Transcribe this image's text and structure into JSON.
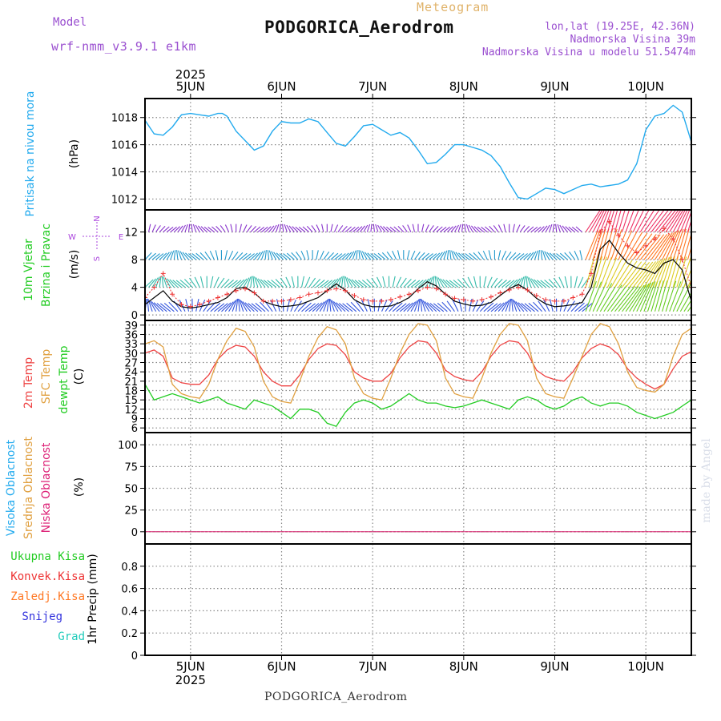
{
  "header": {
    "model_label": "Model",
    "model_name": "wrf-nmm_v3.9.1  e1km",
    "meteogram": "Meteogram",
    "station": "PODGORICA_Aerodrom",
    "lonlat": "lon,lat (19.25E, 42.36N)",
    "altitude": "Nadmorska Visina 39m",
    "model_altitude": "Nadmorska Visina u modelu 51.5474m"
  },
  "footer": {
    "station": "PODGORICA_Aerodrom"
  },
  "watermark": "made by Angel",
  "colors": {
    "pressure": "#22aaee",
    "wind_speed": "#000000",
    "gust": "#ee3333",
    "t2m": "#ee4444",
    "sfc": "#e0a040",
    "dewpt": "#22cc22",
    "visoka": "#22aaee",
    "srednja": "#e0a040",
    "niska": "#dd2277",
    "ukupna": "#22cc22",
    "konvek": "#ee3333",
    "zaledj": "#ff7722",
    "snijeg": "#3333dd",
    "grad": "#22ccbb"
  },
  "chart_data": [
    {
      "type": "line",
      "panel": "pressure",
      "x_labels": [
        "5JUN",
        "6JUN",
        "7JUN",
        "8JUN",
        "9JUN",
        "10JUN"
      ],
      "year": "2025",
      "x_range": [
        4.5,
        10.5
      ],
      "ylim": [
        1011.2,
        1019.4
      ],
      "yticks": [
        "1012",
        "1014",
        "1016",
        "1018"
      ],
      "ylabel_left": "Pritisak na nivou mora",
      "unit": "(hPa)",
      "grid": true,
      "series": [
        {
          "x": [
            4.5,
            4.6,
            4.7,
            4.8,
            4.9,
            5.0,
            5.1,
            5.2,
            5.3,
            5.35,
            5.4,
            5.5,
            5.6,
            5.7,
            5.8,
            5.9,
            6.0,
            6.1,
            6.2,
            6.3,
            6.4,
            6.5,
            6.6,
            6.7,
            6.8,
            6.9,
            7.0,
            7.1,
            7.2,
            7.3,
            7.4,
            7.5,
            7.6,
            7.7,
            7.8,
            7.9,
            8.0,
            8.1,
            8.2,
            8.3,
            8.4,
            8.5,
            8.6,
            8.7,
            8.8,
            8.9,
            9.0,
            9.1,
            9.2,
            9.3,
            9.4,
            9.5,
            9.6,
            9.7,
            9.8,
            9.9,
            10.0,
            10.1,
            10.2,
            10.3,
            10.4,
            10.5
          ],
          "y": [
            1017.8,
            1016.8,
            1016.7,
            1017.3,
            1018.2,
            1018.3,
            1018.2,
            1018.1,
            1018.3,
            1018.3,
            1018.1,
            1017.0,
            1016.3,
            1015.6,
            1015.9,
            1017.0,
            1017.7,
            1017.6,
            1017.6,
            1017.9,
            1017.7,
            1016.9,
            1016.1,
            1015.9,
            1016.6,
            1017.4,
            1017.5,
            1017.1,
            1016.7,
            1016.9,
            1016.5,
            1015.6,
            1014.6,
            1014.7,
            1015.3,
            1016.0,
            1016.0,
            1015.8,
            1015.6,
            1015.2,
            1014.4,
            1013.2,
            1012.1,
            1012.0,
            1012.4,
            1012.8,
            1012.7,
            1012.4,
            1012.7,
            1013.0,
            1013.1,
            1012.9,
            1013.0,
            1013.1,
            1013.4,
            1014.6,
            1017.1,
            1018.1,
            1018.3,
            1018.9,
            1018.4,
            1016.2
          ]
        }
      ]
    },
    {
      "type": "line",
      "panel": "wind",
      "x_range": [
        4.5,
        10.5
      ],
      "ylim": [
        -0.8,
        15.2
      ],
      "yticks": [
        "0",
        "4",
        "8",
        "12"
      ],
      "ylabel_left": [
        "10m Vjetar",
        "Brzina i Pravac"
      ],
      "unit": "(m/s)",
      "direction_legend": [
        "N",
        "E",
        "S",
        "W"
      ],
      "grid": true,
      "series": [
        {
          "name": "wind_speed",
          "x": [
            4.5,
            4.6,
            4.7,
            4.8,
            4.9,
            5.0,
            5.1,
            5.2,
            5.3,
            5.4,
            5.5,
            5.6,
            5.7,
            5.8,
            5.9,
            6.0,
            6.1,
            6.2,
            6.3,
            6.4,
            6.5,
            6.6,
            6.7,
            6.8,
            6.9,
            7.0,
            7.1,
            7.2,
            7.3,
            7.4,
            7.5,
            7.6,
            7.7,
            7.8,
            7.9,
            8.0,
            8.1,
            8.2,
            8.3,
            8.4,
            8.5,
            8.6,
            8.7,
            8.8,
            8.9,
            9.0,
            9.1,
            9.2,
            9.3,
            9.4,
            9.5,
            9.6,
            9.7,
            9.8,
            9.9,
            10.0,
            10.1,
            10.2,
            10.3,
            10.4,
            10.5
          ],
          "y": [
            1.5,
            2.5,
            3.5,
            2.0,
            1.2,
            1.0,
            1.2,
            1.5,
            1.8,
            2.5,
            3.8,
            4.0,
            3.2,
            2.0,
            1.5,
            1.2,
            1.3,
            1.5,
            2.0,
            2.5,
            3.5,
            4.5,
            3.6,
            2.2,
            1.5,
            1.2,
            1.2,
            1.3,
            1.8,
            2.5,
            3.8,
            4.8,
            4.2,
            3.0,
            2.0,
            1.6,
            1.3,
            1.4,
            1.8,
            2.8,
            3.8,
            4.4,
            3.6,
            2.4,
            1.6,
            1.2,
            1.3,
            1.5,
            1.8,
            4.0,
            9.5,
            10.8,
            9.0,
            7.5,
            6.8,
            6.5,
            6.0,
            7.5,
            8.0,
            6.5,
            2.0
          ]
        },
        {
          "name": "gust",
          "x": [
            4.5,
            4.6,
            4.7,
            4.8,
            4.9,
            5.0,
            5.1,
            5.2,
            5.3,
            5.4,
            5.5,
            5.6,
            5.7,
            5.8,
            5.9,
            6.0,
            6.1,
            6.2,
            6.3,
            6.4,
            6.5,
            6.6,
            6.7,
            6.8,
            6.9,
            7.0,
            7.1,
            7.2,
            7.3,
            7.4,
            7.5,
            7.6,
            7.7,
            7.8,
            7.9,
            8.0,
            8.1,
            8.2,
            8.3,
            8.4,
            8.5,
            8.6,
            8.7,
            8.8,
            8.9,
            9.0,
            9.1,
            9.2,
            9.3,
            9.4,
            9.5,
            9.6,
            9.7,
            9.8,
            9.9,
            10.0,
            10.1,
            10.2,
            10.3,
            10.4,
            10.5
          ],
          "y": [
            2.5,
            4.0,
            6.0,
            3.0,
            1.5,
            1.2,
            1.5,
            2.0,
            2.5,
            3.0,
            3.5,
            3.8,
            3.2,
            2.0,
            2.0,
            2.0,
            2.2,
            2.5,
            3.0,
            3.2,
            3.5,
            3.8,
            3.5,
            2.8,
            2.2,
            2.0,
            2.0,
            2.2,
            2.6,
            3.0,
            3.5,
            4.0,
            3.8,
            3.0,
            2.4,
            2.2,
            2.0,
            2.2,
            2.6,
            3.2,
            3.6,
            4.0,
            3.6,
            2.8,
            2.2,
            2.0,
            2.0,
            2.5,
            3.0,
            6.0,
            12.0,
            13.5,
            11.5,
            10.0,
            9.0,
            10.0,
            11.0,
            12.5,
            11.0,
            8.0,
            4.0
          ]
        }
      ]
    },
    {
      "type": "line",
      "panel": "temperature",
      "x_range": [
        4.5,
        10.5
      ],
      "ylim": [
        4.5,
        40.5
      ],
      "yticks": [
        "6",
        "9",
        "12",
        "15",
        "18",
        "21",
        "24",
        "27",
        "30",
        "33",
        "36",
        "39"
      ],
      "ylabel_left": [
        "2m Temp",
        "SFC Temp",
        "dewpt Temp"
      ],
      "unit": "(C)",
      "grid": true,
      "series": [
        {
          "name": "2m Temp",
          "x": [
            4.5,
            4.6,
            4.7,
            4.8,
            4.9,
            5.0,
            5.1,
            5.2,
            5.3,
            5.4,
            5.5,
            5.6,
            5.7,
            5.8,
            5.9,
            6.0,
            6.1,
            6.2,
            6.3,
            6.4,
            6.5,
            6.6,
            6.7,
            6.8,
            6.9,
            7.0,
            7.1,
            7.2,
            7.3,
            7.4,
            7.5,
            7.6,
            7.7,
            7.8,
            7.9,
            8.0,
            8.1,
            8.2,
            8.3,
            8.4,
            8.5,
            8.6,
            8.7,
            8.8,
            8.9,
            9.0,
            9.1,
            9.2,
            9.3,
            9.4,
            9.5,
            9.6,
            9.7,
            9.8,
            9.9,
            10.0,
            10.1,
            10.2,
            10.3,
            10.4,
            10.5
          ],
          "y": [
            30,
            31,
            29,
            22,
            20.5,
            20,
            20,
            23,
            28,
            31,
            32.5,
            32,
            29,
            24,
            21,
            19.5,
            19.5,
            23,
            28,
            31.5,
            33,
            32.5,
            29.5,
            24,
            22,
            21,
            21,
            23.5,
            28.5,
            32,
            34,
            33.5,
            30,
            24.5,
            22.5,
            21.5,
            21,
            24,
            29,
            32.5,
            34,
            33.5,
            30,
            24.5,
            22.5,
            21.5,
            21,
            24,
            28.5,
            31.5,
            33,
            32,
            29.5,
            25,
            22,
            20,
            18.5,
            20,
            25,
            29,
            30.5
          ]
        },
        {
          "name": "SFC Temp",
          "x": [
            4.5,
            4.6,
            4.7,
            4.8,
            4.9,
            5.0,
            5.1,
            5.2,
            5.3,
            5.4,
            5.5,
            5.6,
            5.7,
            5.8,
            5.9,
            6.0,
            6.1,
            6.2,
            6.3,
            6.4,
            6.5,
            6.6,
            6.7,
            6.8,
            6.9,
            7.0,
            7.1,
            7.2,
            7.3,
            7.4,
            7.5,
            7.6,
            7.7,
            7.8,
            7.9,
            8.0,
            8.1,
            8.2,
            8.3,
            8.4,
            8.5,
            8.6,
            8.7,
            8.8,
            8.9,
            9.0,
            9.1,
            9.2,
            9.3,
            9.4,
            9.5,
            9.6,
            9.7,
            9.8,
            9.9,
            10.0,
            10.1,
            10.2,
            10.3,
            10.4,
            10.5
          ],
          "y": [
            33,
            34,
            32,
            20,
            17,
            16,
            15.5,
            20,
            28,
            34,
            38,
            37,
            32,
            21,
            16,
            14.5,
            14,
            21,
            29,
            35,
            38.5,
            37.5,
            33,
            22,
            17,
            15.5,
            15,
            22,
            30,
            36,
            39.5,
            39,
            34,
            22,
            17,
            16,
            15.5,
            22,
            30,
            36,
            39.5,
            39,
            34,
            22,
            17,
            16,
            15.5,
            22,
            29,
            36,
            39.5,
            38.5,
            33,
            24,
            19,
            18,
            17.5,
            20,
            29,
            36,
            38
          ]
        },
        {
          "name": "dewpt Temp",
          "x": [
            4.5,
            4.6,
            4.7,
            4.8,
            4.9,
            5.0,
            5.1,
            5.2,
            5.3,
            5.4,
            5.5,
            5.6,
            5.7,
            5.8,
            5.9,
            6.0,
            6.1,
            6.2,
            6.3,
            6.4,
            6.5,
            6.6,
            6.7,
            6.8,
            6.9,
            7.0,
            7.1,
            7.2,
            7.3,
            7.4,
            7.5,
            7.6,
            7.7,
            7.8,
            7.9,
            8.0,
            8.1,
            8.2,
            8.3,
            8.4,
            8.5,
            8.6,
            8.7,
            8.8,
            8.9,
            9.0,
            9.1,
            9.2,
            9.3,
            9.4,
            9.5,
            9.6,
            9.7,
            9.8,
            9.9,
            10.0,
            10.1,
            10.2,
            10.3,
            10.4,
            10.5
          ],
          "y": [
            20,
            15,
            16,
            17,
            16,
            15,
            14,
            15,
            16,
            14,
            13,
            12,
            15,
            14,
            13,
            11,
            9,
            12,
            12,
            11,
            7.5,
            6.5,
            11,
            14,
            15,
            14,
            12,
            13,
            15,
            17,
            15,
            14,
            14,
            13,
            12.5,
            13,
            14,
            15,
            14,
            13,
            12,
            15,
            16,
            15,
            13,
            12,
            13,
            15,
            16,
            14,
            13,
            14,
            14,
            13,
            11,
            10,
            9,
            10,
            11,
            13,
            15
          ]
        }
      ]
    },
    {
      "type": "line",
      "panel": "cloud",
      "x_range": [
        4.5,
        10.5
      ],
      "ylim": [
        -14,
        114
      ],
      "yticks": [
        "0",
        "25",
        "50",
        "75",
        "100"
      ],
      "ylabel_left": [
        "Visoka Oblacnost",
        "Srednja Oblacnost",
        "Niska Oblacnost"
      ],
      "unit": "(%)",
      "grid": true,
      "series": [
        {
          "name": "Visoka Oblacnost",
          "x": [
            4.5,
            10.5
          ],
          "y": [
            0,
            0
          ]
        },
        {
          "name": "Srednja Oblacnost",
          "x": [
            4.5,
            10.5
          ],
          "y": [
            0,
            0
          ]
        },
        {
          "name": "Niska Oblacnost",
          "x": [
            4.5,
            10.5
          ],
          "y": [
            0,
            0
          ]
        }
      ]
    },
    {
      "type": "line",
      "panel": "precipitation",
      "x_range": [
        4.5,
        10.5
      ],
      "ylim": [
        0,
        1.0
      ],
      "yticks": [
        "0",
        "0.2",
        "0.4",
        "0.6",
        "0.8"
      ],
      "ylabel_left": [
        "Ukupna Kisa",
        "Konvek.Kisa",
        "Zaledj.Kisa",
        "Snijeg",
        "Grad"
      ],
      "unit": "1hr Precip (mm)",
      "grid": true,
      "x_labels": [
        "5JUN",
        "6JUN",
        "7JUN",
        "8JUN",
        "9JUN",
        "10JUN"
      ],
      "year": "2025",
      "series": []
    }
  ]
}
